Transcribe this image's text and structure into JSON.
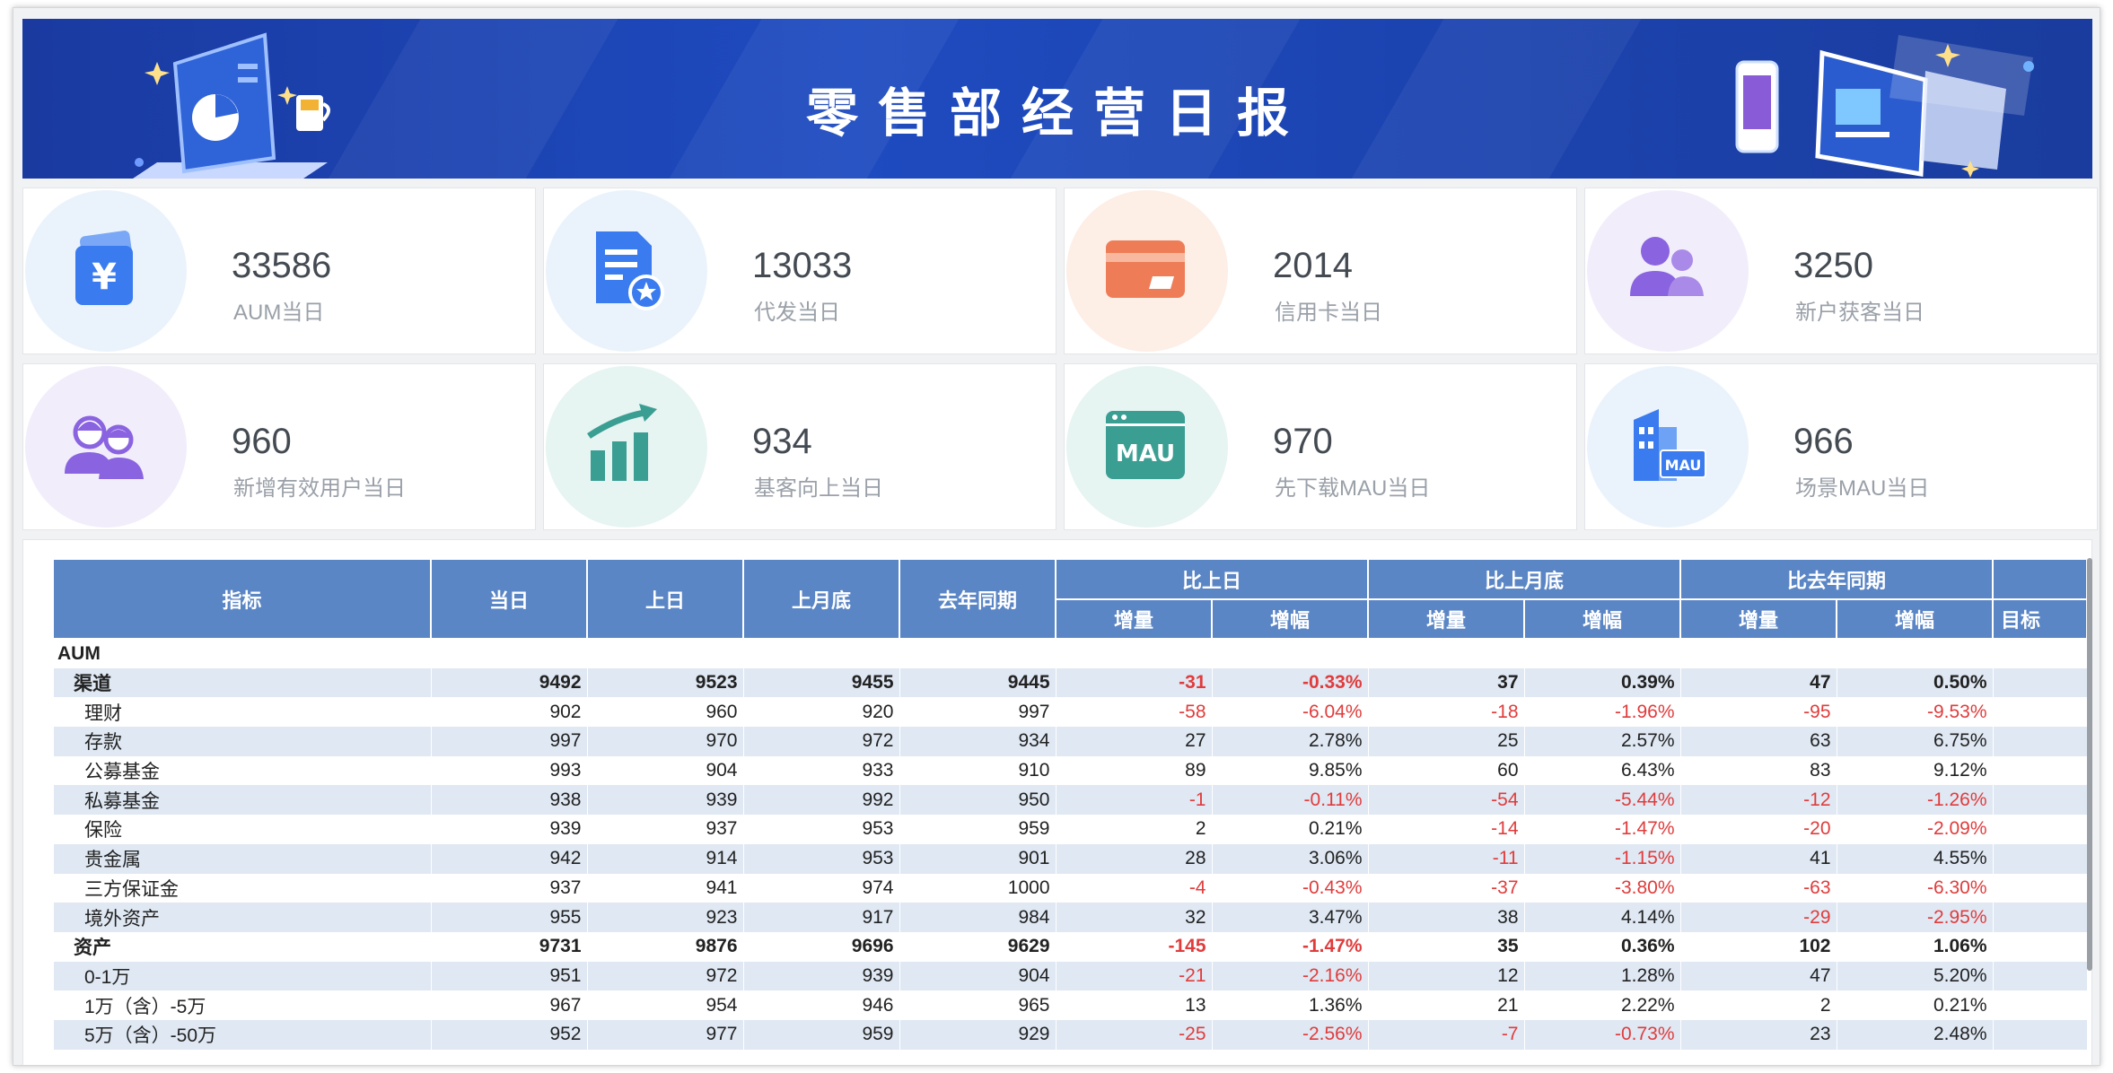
{
  "header": {
    "title": "零售部经营日报"
  },
  "kpis": [
    {
      "value": "33586",
      "label": "AUM当日",
      "icon": "wallet-yuan-icon",
      "color": "#3a7bef",
      "bg": "#eaf3fb"
    },
    {
      "value": "13033",
      "label": "代发当日",
      "icon": "document-star-icon",
      "color": "#3a7bef",
      "bg": "#eaf3fb"
    },
    {
      "value": "2014",
      "label": "信用卡当日",
      "icon": "credit-card-icon",
      "color": "#ee7d57",
      "bg": "#fdeee6"
    },
    {
      "value": "3250",
      "label": "新户获客当日",
      "icon": "users-icon",
      "color": "#8a63e0",
      "bg": "#f1edfb"
    },
    {
      "value": "960",
      "label": "新增有效用户当日",
      "icon": "user-pair-icon",
      "color": "#8a63e0",
      "bg": "#f1edfb"
    },
    {
      "value": "934",
      "label": "基客向上当日",
      "icon": "bar-chart-up-icon",
      "color": "#3a9e93",
      "bg": "#e6f4f2"
    },
    {
      "value": "970",
      "label": "先下载MAU当日",
      "icon": "mau-window-icon",
      "color": "#3a9e93",
      "bg": "#e6f4f2"
    },
    {
      "value": "966",
      "label": "场景MAU当日",
      "icon": "building-mau-icon",
      "color": "#3a7bef",
      "bg": "#eaf3fb"
    }
  ],
  "table": {
    "headers": {
      "indicator": "指标",
      "today": "当日",
      "prev_day": "上日",
      "prev_month_end": "上月底",
      "last_year": "去年同期",
      "vs_prev_day": "比上日",
      "vs_prev_month_end": "比上月底",
      "vs_last_year": "比去年同期",
      "increase": "增量",
      "growth": "增幅",
      "target": "目标"
    },
    "rows": [
      {
        "name": "AUM",
        "level": 0,
        "bold": true,
        "cells": [
          "",
          "",
          "",
          "",
          "",
          "",
          "",
          "",
          "",
          ""
        ]
      },
      {
        "name": "渠道",
        "level": 1,
        "bold": true,
        "cells": [
          "9492",
          "9523",
          "9455",
          "9445",
          "-31",
          "-0.33%",
          "37",
          "0.39%",
          "47",
          "0.50%"
        ]
      },
      {
        "name": "理财",
        "level": 2,
        "bold": false,
        "cells": [
          "902",
          "960",
          "920",
          "997",
          "-58",
          "-6.04%",
          "-18",
          "-1.96%",
          "-95",
          "-9.53%"
        ]
      },
      {
        "name": "存款",
        "level": 2,
        "bold": false,
        "cells": [
          "997",
          "970",
          "972",
          "934",
          "27",
          "2.78%",
          "25",
          "2.57%",
          "63",
          "6.75%"
        ]
      },
      {
        "name": "公募基金",
        "level": 2,
        "bold": false,
        "cells": [
          "993",
          "904",
          "933",
          "910",
          "89",
          "9.85%",
          "60",
          "6.43%",
          "83",
          "9.12%"
        ]
      },
      {
        "name": "私募基金",
        "level": 2,
        "bold": false,
        "cells": [
          "938",
          "939",
          "992",
          "950",
          "-1",
          "-0.11%",
          "-54",
          "-5.44%",
          "-12",
          "-1.26%"
        ]
      },
      {
        "name": "保险",
        "level": 2,
        "bold": false,
        "cells": [
          "939",
          "937",
          "953",
          "959",
          "2",
          "0.21%",
          "-14",
          "-1.47%",
          "-20",
          "-2.09%"
        ]
      },
      {
        "name": "贵金属",
        "level": 2,
        "bold": false,
        "cells": [
          "942",
          "914",
          "953",
          "901",
          "28",
          "3.06%",
          "-11",
          "-1.15%",
          "41",
          "4.55%"
        ]
      },
      {
        "name": "三方保证金",
        "level": 2,
        "bold": false,
        "cells": [
          "937",
          "941",
          "974",
          "1000",
          "-4",
          "-0.43%",
          "-37",
          "-3.80%",
          "-63",
          "-6.30%"
        ]
      },
      {
        "name": "境外资产",
        "level": 2,
        "bold": false,
        "cells": [
          "955",
          "923",
          "917",
          "984",
          "32",
          "3.47%",
          "38",
          "4.14%",
          "-29",
          "-2.95%"
        ]
      },
      {
        "name": "资产",
        "level": 1,
        "bold": true,
        "cells": [
          "9731",
          "9876",
          "9696",
          "9629",
          "-145",
          "-1.47%",
          "35",
          "0.36%",
          "102",
          "1.06%"
        ]
      },
      {
        "name": "0-1万",
        "level": 2,
        "bold": false,
        "cells": [
          "951",
          "972",
          "939",
          "904",
          "-21",
          "-2.16%",
          "12",
          "1.28%",
          "47",
          "5.20%"
        ]
      },
      {
        "name": "1万（含）-5万",
        "level": 2,
        "bold": false,
        "cells": [
          "967",
          "954",
          "946",
          "965",
          "13",
          "1.36%",
          "21",
          "2.22%",
          "2",
          "0.21%"
        ]
      },
      {
        "name": "5万（含）-50万",
        "level": 2,
        "bold": false,
        "cells": [
          "952",
          "977",
          "959",
          "929",
          "-25",
          "-2.56%",
          "-7",
          "-0.73%",
          "23",
          "2.48%"
        ]
      }
    ]
  }
}
